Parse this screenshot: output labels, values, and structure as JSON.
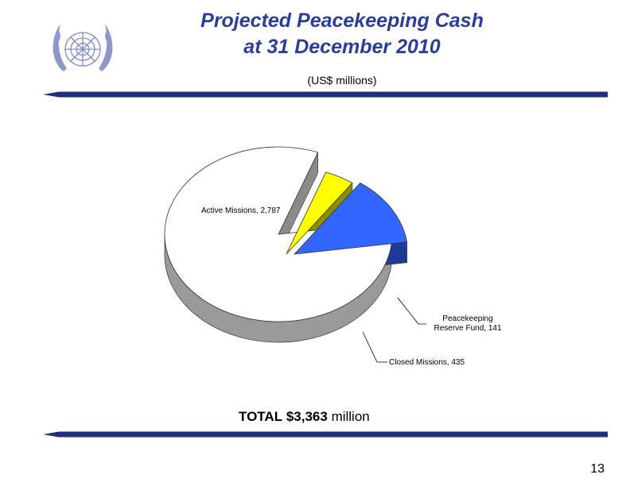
{
  "header": {
    "title_line1": "Projected Peacekeeping Cash",
    "title_line2": "at 31 December 2010",
    "subtitle": "(US$ millions)"
  },
  "logo": {
    "icon": "un-emblem-icon",
    "color": "#2b3d9b"
  },
  "chart_data": {
    "type": "pie",
    "categories": [
      "Active Missions",
      "Peacekeeping Reserve Fund",
      "Closed Missions"
    ],
    "values": [
      2787,
      141,
      435
    ],
    "labels": [
      "Active Missions, 2,787",
      "Peacekeeping Reserve Fund, 141",
      "Closed Missions, 435"
    ],
    "colors": [
      "#ffffff",
      "#ffff00",
      "#3366ff"
    ],
    "three_d": true,
    "exploded": [
      "Peacekeeping Reserve Fund",
      "Closed Missions"
    ]
  },
  "footer": {
    "total_label": "TOTAL",
    "total_value": "$3,363",
    "total_unit": "million",
    "page_number": "13"
  },
  "colors": {
    "title": "#2b3d9b",
    "rule": "#1f2f7a"
  }
}
